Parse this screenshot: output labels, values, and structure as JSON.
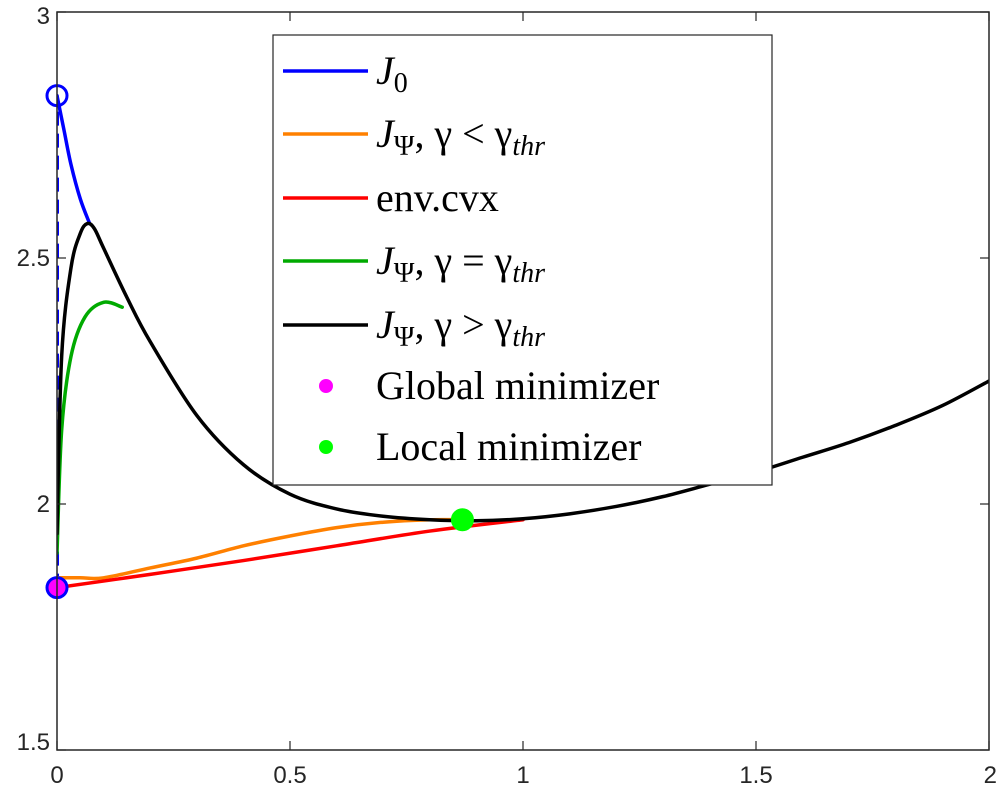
{
  "chart_data": {
    "type": "line",
    "title": "",
    "xlabel": "",
    "ylabel": "",
    "xlim": [
      0,
      2
    ],
    "ylim": [
      1.5,
      3
    ],
    "x_ticks": [
      0,
      0.5,
      1,
      1.5,
      2
    ],
    "y_ticks": [
      1.5,
      2,
      2.5,
      3
    ],
    "x_tick_labels": [
      "0",
      "0.5",
      "1",
      "1.5",
      "2"
    ],
    "y_tick_labels": [
      "1.5",
      "2",
      "2.5",
      "3"
    ],
    "grid": false,
    "legend_position": "top-center",
    "series": [
      {
        "name": "J_0",
        "color": "#0000ff",
        "style": "solid",
        "points": [
          [
            0.0,
            2.83
          ],
          [
            0.015,
            2.76
          ],
          [
            0.03,
            2.69
          ],
          [
            0.05,
            2.62
          ],
          [
            0.07,
            2.57
          ]
        ]
      },
      {
        "name": "J_Ψ, γ < γ_thr",
        "color": "#ff8000",
        "style": "solid",
        "points": [
          [
            0.0,
            1.85
          ],
          [
            0.05,
            1.85
          ],
          [
            0.1,
            1.85
          ],
          [
            0.2,
            1.87
          ],
          [
            0.3,
            1.89
          ],
          [
            0.4,
            1.915
          ],
          [
            0.5,
            1.935
          ],
          [
            0.6,
            1.952
          ],
          [
            0.7,
            1.963
          ],
          [
            0.8,
            1.968
          ],
          [
            0.87,
            1.968
          ]
        ]
      },
      {
        "name": "env.cvx",
        "color": "#ff0000",
        "style": "solid",
        "points": [
          [
            0.0,
            1.83
          ],
          [
            0.2,
            1.857
          ],
          [
            0.4,
            1.885
          ],
          [
            0.6,
            1.915
          ],
          [
            0.8,
            1.945
          ],
          [
            1.0,
            1.968
          ]
        ]
      },
      {
        "name": "J_Ψ, γ = γ_thr",
        "color": "#00aa00",
        "style": "solid",
        "points": [
          [
            0.0,
            1.9
          ],
          [
            0.01,
            2.15
          ],
          [
            0.03,
            2.3
          ],
          [
            0.06,
            2.38
          ],
          [
            0.1,
            2.41
          ],
          [
            0.14,
            2.4
          ]
        ]
      },
      {
        "name": "J_Ψ, γ > γ_thr",
        "color": "#000000",
        "style": "solid",
        "points": [
          [
            0.0,
            1.94
          ],
          [
            0.01,
            2.3
          ],
          [
            0.03,
            2.48
          ],
          [
            0.05,
            2.55
          ],
          [
            0.065,
            2.57
          ],
          [
            0.08,
            2.56
          ],
          [
            0.1,
            2.52
          ],
          [
            0.15,
            2.42
          ],
          [
            0.2,
            2.33
          ],
          [
            0.3,
            2.18
          ],
          [
            0.4,
            2.08
          ],
          [
            0.5,
            2.02
          ],
          [
            0.6,
            1.99
          ],
          [
            0.7,
            1.975
          ],
          [
            0.8,
            1.968
          ],
          [
            0.9,
            1.966
          ],
          [
            1.0,
            1.97
          ],
          [
            1.1,
            1.98
          ],
          [
            1.2,
            1.995
          ],
          [
            1.3,
            2.015
          ],
          [
            1.4,
            2.04
          ],
          [
            1.5,
            2.065
          ],
          [
            1.6,
            2.095
          ],
          [
            1.7,
            2.125
          ],
          [
            1.8,
            2.16
          ],
          [
            1.9,
            2.2
          ],
          [
            2.0,
            2.25
          ]
        ]
      }
    ],
    "vertical_dashed": {
      "color": "#0000ff",
      "x": 0,
      "y_from": 1.83,
      "y_to": 2.83
    },
    "markers": [
      {
        "name": "Global minimizer",
        "x": 0,
        "y": 1.83,
        "fill": "#ff00ff",
        "edge": "#0000ff"
      },
      {
        "name": "Local minimizer",
        "x": 0.87,
        "y": 1.968,
        "fill": "#00ff00",
        "edge": "#00ff00"
      },
      {
        "name": "",
        "x": 0,
        "y": 2.83,
        "fill": "none",
        "edge": "#0000ff"
      }
    ],
    "legend": [
      {
        "kind": "line",
        "color": "#0000ff",
        "label_main": "J",
        "label_sub": "0",
        "label_rest": ""
      },
      {
        "kind": "line",
        "color": "#ff8000",
        "label_main": "J",
        "label_sub": "Ψ",
        "label_rest": ", γ < γ",
        "label_rest_sub": "thr"
      },
      {
        "kind": "line",
        "color": "#ff0000",
        "label_plain": "env.cvx"
      },
      {
        "kind": "line",
        "color": "#00aa00",
        "label_main": "J",
        "label_sub": "Ψ",
        "label_rest": ", γ = γ",
        "label_rest_sub": "thr"
      },
      {
        "kind": "line",
        "color": "#000000",
        "label_main": "J",
        "label_sub": "Ψ",
        "label_rest": ", γ > γ",
        "label_rest_sub": "thr"
      },
      {
        "kind": "dot",
        "color": "#ff00ff",
        "label_plain": "Global minimizer"
      },
      {
        "kind": "dot",
        "color": "#00ff00",
        "label_plain": "Local minimizer"
      }
    ]
  }
}
